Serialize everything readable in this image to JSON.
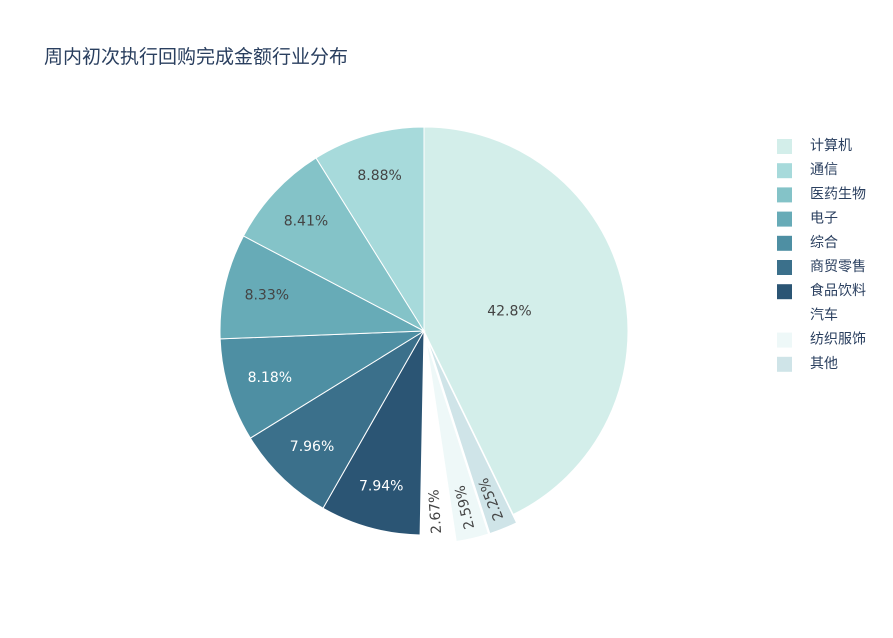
{
  "chart_data": {
    "type": "pie",
    "title": "周内初次执行回购完成金额行业分布",
    "categories": [
      "计算机",
      "通信",
      "医药生物",
      "电子",
      "综合",
      "商贸零售",
      "食品饮料",
      "汽车",
      "纺织服饰",
      "其他"
    ],
    "values": [
      42.8,
      8.88,
      8.41,
      8.33,
      8.18,
      7.96,
      7.94,
      2.67,
      2.59,
      2.25
    ],
    "labels": [
      "42.8%",
      "8.88%",
      "8.41%",
      "8.33%",
      "8.18%",
      "7.96%",
      "7.94%",
      "2.67%",
      "2.59%",
      "2.25%"
    ],
    "slice_order": [
      "计算机",
      "其他",
      "纺织服饰",
      "汽车",
      "食品饮料",
      "商贸零售",
      "综合",
      "电子",
      "医药生物",
      "通信"
    ],
    "colors": {
      "计算机": "#d3eeea",
      "通信": "#a7dadb",
      "医药生物": "#84c3c8",
      "电子": "#67abb7",
      "综合": "#4e8fa3",
      "商贸零售": "#3b708b",
      "食品饮料": "#2b5574",
      "汽车": "#ffffff",
      "纺织服饰": "#eef8f8",
      "其他": "#cfe4e8"
    },
    "label_colors": {
      "计算机": "#444444",
      "通信": "#444444",
      "医药生物": "#444444",
      "电子": "#444444",
      "综合": "#ffffff",
      "商贸零售": "#ffffff",
      "食品饮料": "#ffffff",
      "汽车": "#444444",
      "纺织服饰": "#444444",
      "其他": "#444444"
    },
    "pulled_slices": [
      "其他",
      "纺织服饰",
      "汽车"
    ],
    "legend_position": "top-right",
    "direction": "clockwise",
    "rotation_start": "top"
  }
}
